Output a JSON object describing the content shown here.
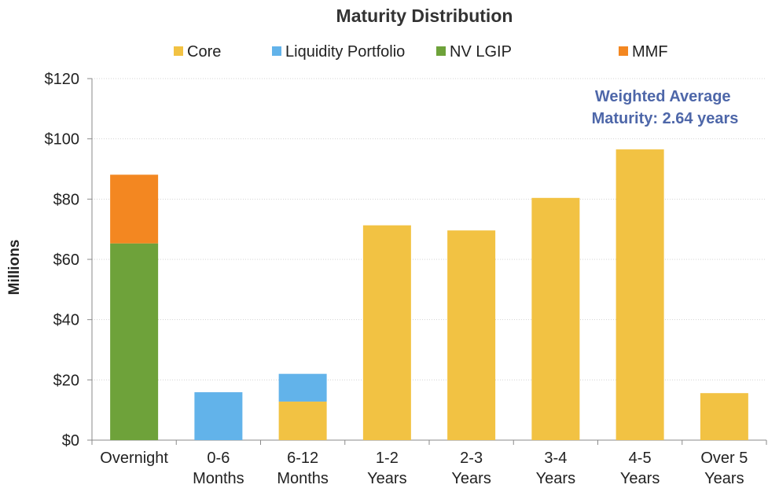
{
  "chart_data": {
    "type": "bar",
    "stacked": true,
    "title": "Maturity Distribution",
    "xlabel": "",
    "ylabel": "Millions",
    "ylim": [
      0,
      120
    ],
    "y_ticks": [
      0,
      20,
      40,
      60,
      80,
      100,
      120
    ],
    "y_tick_labels": [
      "$0",
      "$20",
      "$40",
      "$60",
      "$80",
      "$100",
      "$120"
    ],
    "grid": true,
    "legend_position": "top",
    "categories": [
      [
        "Overnight"
      ],
      [
        "0-6",
        "Months"
      ],
      [
        "6-12",
        "Months"
      ],
      [
        "1-2",
        "Years"
      ],
      [
        "2-3",
        "Years"
      ],
      [
        "3-4",
        "Years"
      ],
      [
        "4-5",
        "Years"
      ],
      [
        "Over 5",
        "Years"
      ]
    ],
    "series": [
      {
        "name": "Core",
        "color": "#F2C243",
        "values": [
          0,
          0,
          12.8,
          71.3,
          69.6,
          80.4,
          96.5,
          15.6
        ]
      },
      {
        "name": "Liquidity Portfolio",
        "color": "#62B3EA",
        "values": [
          0,
          15.9,
          9.2,
          0,
          0,
          0,
          0,
          0
        ]
      },
      {
        "name": "NV LGIP",
        "color": "#6EA23A",
        "values": [
          65.3,
          0,
          0,
          0,
          0,
          0,
          0,
          0
        ]
      },
      {
        "name": "MMF",
        "color": "#F38721",
        "values": [
          22.8,
          0,
          0,
          0,
          0,
          0,
          0,
          0
        ]
      }
    ],
    "annotation": {
      "lines": [
        "Weighted Average",
        "Maturity: 2.64 years"
      ],
      "color": "#4E67A9"
    }
  }
}
